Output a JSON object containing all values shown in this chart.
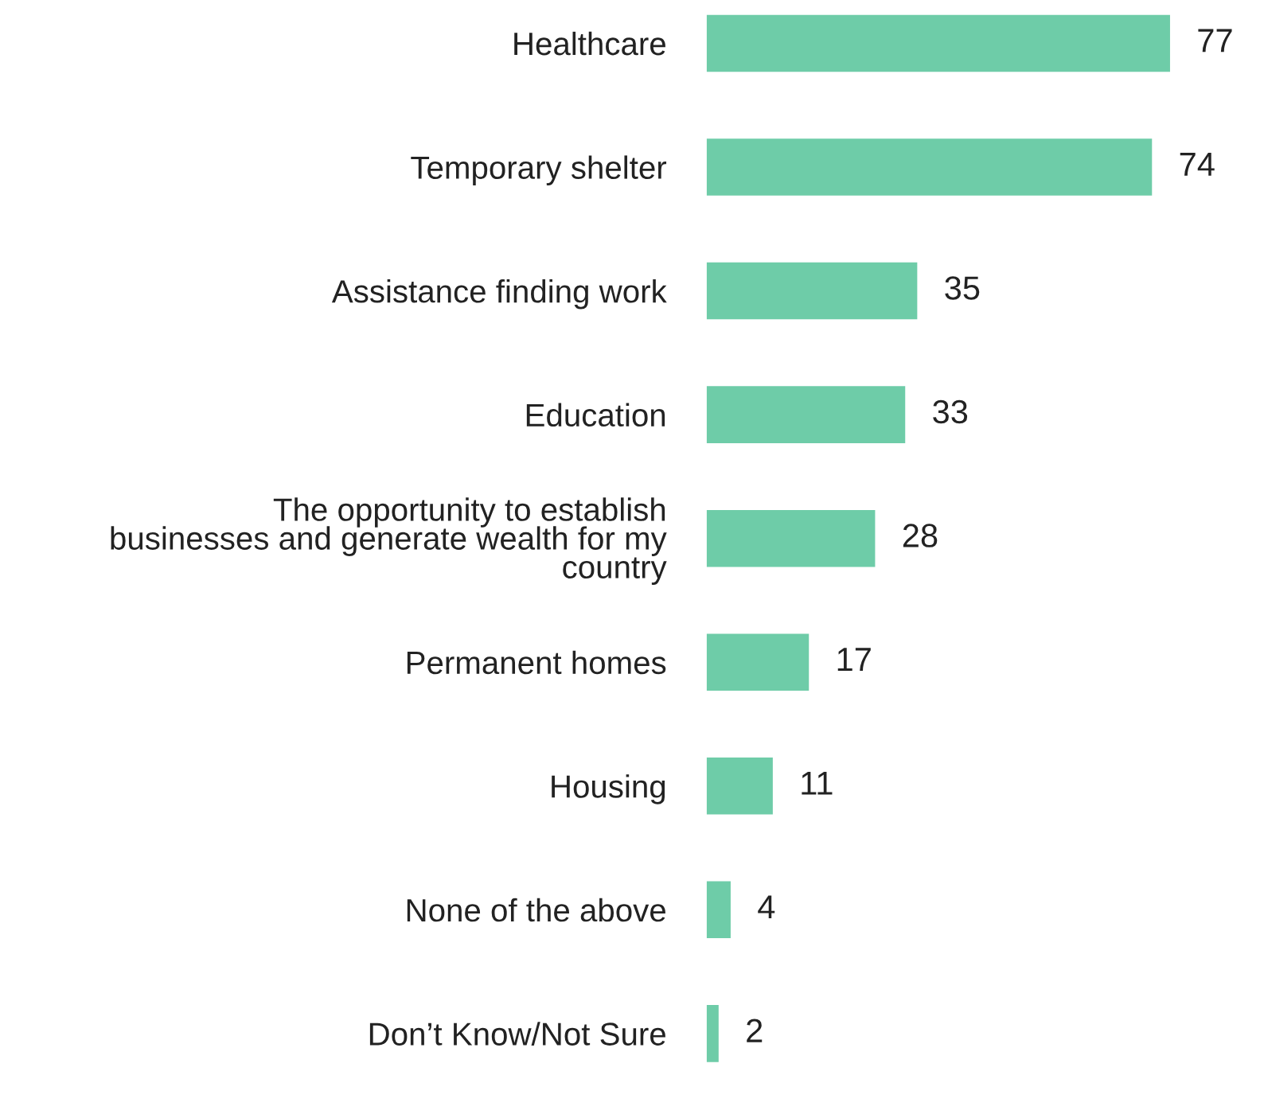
{
  "chart_data": {
    "type": "bar",
    "orientation": "horizontal",
    "categories": [
      "Healthcare",
      "Temporary shelter",
      "Assistance finding work",
      "Education",
      "The opportunity to establish\nbusinesses and generate wealth for my\ncountry",
      "Permanent homes",
      "Housing",
      "None of the above",
      "Don’t Know/Not Sure"
    ],
    "values": [
      77,
      74,
      35,
      33,
      28,
      17,
      11,
      4,
      2
    ],
    "color": "#6ecca8",
    "data_labels": true,
    "grid": false,
    "legend": false
  }
}
